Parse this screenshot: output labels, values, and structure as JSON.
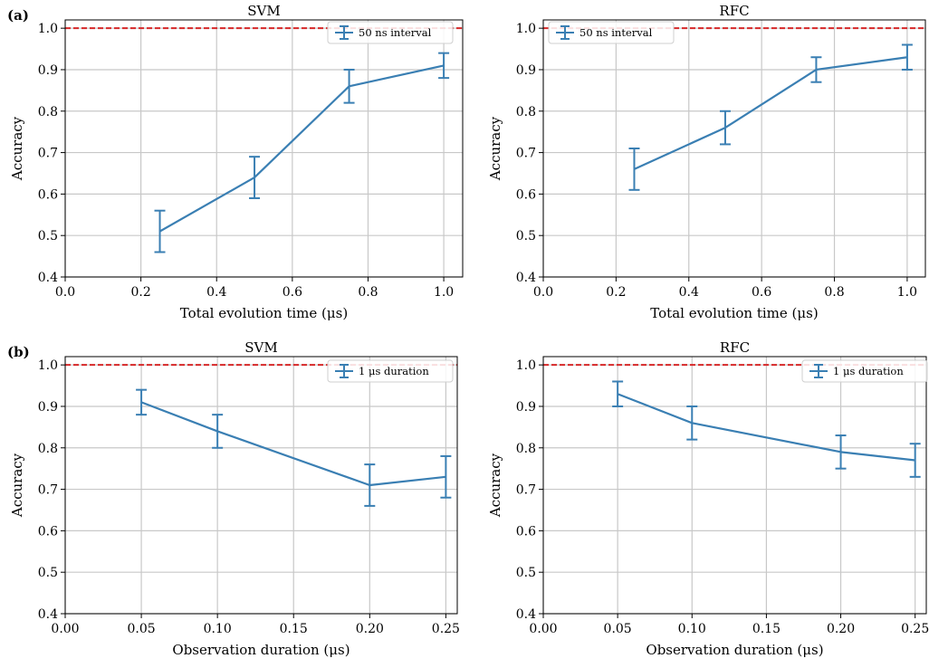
{
  "figure": {
    "panel_labels": [
      "(a)",
      "(b)"
    ]
  },
  "style": {
    "series_color": "#3a7fb3",
    "reference_color": "#d62728",
    "grid_color": "#c8c8c8",
    "frame_color": "#000000"
  },
  "chart_data": [
    {
      "type": "line",
      "panel": "(a)",
      "title": "SVM",
      "xlabel": "Total evolution time (μs)",
      "ylabel": "Accuracy",
      "xlim": [
        0.0,
        1.05
      ],
      "ylim": [
        0.4,
        1.02
      ],
      "xticks": [
        0.0,
        0.2,
        0.4,
        0.6,
        0.8,
        1.0
      ],
      "xtick_labels": [
        "0.0",
        "0.2",
        "0.4",
        "0.6",
        "0.8",
        "1.0"
      ],
      "yticks": [
        0.4,
        0.5,
        0.6,
        0.7,
        0.8,
        0.9,
        1.0
      ],
      "ytick_labels": [
        "0.4",
        "0.5",
        "0.6",
        "0.7",
        "0.8",
        "0.9",
        "1.0"
      ],
      "grid": true,
      "legend_position": "top-right",
      "reference_line": 1.0,
      "series": [
        {
          "name": "50 ns interval",
          "x": [
            0.25,
            0.5,
            0.75,
            1.0
          ],
          "y": [
            0.51,
            0.64,
            0.86,
            0.91
          ],
          "yerr_low": [
            0.46,
            0.59,
            0.82,
            0.88
          ],
          "yerr_high": [
            0.56,
            0.69,
            0.9,
            0.94
          ]
        }
      ]
    },
    {
      "type": "line",
      "panel": "",
      "title": "RFC",
      "xlabel": "Total evolution time (μs)",
      "ylabel": "Accuracy",
      "xlim": [
        0.0,
        1.05
      ],
      "ylim": [
        0.4,
        1.02
      ],
      "xticks": [
        0.0,
        0.2,
        0.4,
        0.6,
        0.8,
        1.0
      ],
      "xtick_labels": [
        "0.0",
        "0.2",
        "0.4",
        "0.6",
        "0.8",
        "1.0"
      ],
      "yticks": [
        0.4,
        0.5,
        0.6,
        0.7,
        0.8,
        0.9,
        1.0
      ],
      "ytick_labels": [
        "0.4",
        "0.5",
        "0.6",
        "0.7",
        "0.8",
        "0.9",
        "1.0"
      ],
      "grid": true,
      "legend_position": "top-left",
      "reference_line": 1.0,
      "series": [
        {
          "name": "50 ns interval",
          "x": [
            0.25,
            0.5,
            0.75,
            1.0
          ],
          "y": [
            0.66,
            0.76,
            0.9,
            0.93
          ],
          "yerr_low": [
            0.61,
            0.72,
            0.87,
            0.9
          ],
          "yerr_high": [
            0.71,
            0.8,
            0.93,
            0.96
          ]
        }
      ]
    },
    {
      "type": "line",
      "panel": "(b)",
      "title": "SVM",
      "xlabel": "Observation duration (μs)",
      "ylabel": "Accuracy",
      "xlim": [
        0.0,
        0.2575
      ],
      "ylim": [
        0.4,
        1.02
      ],
      "xticks": [
        0.0,
        0.05,
        0.1,
        0.15,
        0.2,
        0.25
      ],
      "xtick_labels": [
        "0.00",
        "0.05",
        "0.10",
        "0.15",
        "0.20",
        "0.25"
      ],
      "yticks": [
        0.4,
        0.5,
        0.6,
        0.7,
        0.8,
        0.9,
        1.0
      ],
      "ytick_labels": [
        "0.4",
        "0.5",
        "0.6",
        "0.7",
        "0.8",
        "0.9",
        "1.0"
      ],
      "grid": true,
      "legend_position": "top-right",
      "reference_line": 1.0,
      "series": [
        {
          "name": "1 μs duration",
          "x": [
            0.05,
            0.1,
            0.2,
            0.25
          ],
          "y": [
            0.91,
            0.84,
            0.71,
            0.73
          ],
          "yerr_low": [
            0.88,
            0.8,
            0.66,
            0.68
          ],
          "yerr_high": [
            0.94,
            0.88,
            0.76,
            0.78
          ]
        }
      ]
    },
    {
      "type": "line",
      "panel": "",
      "title": "RFC",
      "xlabel": "Observation duration (μs)",
      "ylabel": "Accuracy",
      "xlim": [
        0.0,
        0.2575
      ],
      "ylim": [
        0.4,
        1.02
      ],
      "xticks": [
        0.0,
        0.05,
        0.1,
        0.15,
        0.2,
        0.25
      ],
      "xtick_labels": [
        "0.00",
        "0.05",
        "0.10",
        "0.15",
        "0.20",
        "0.25"
      ],
      "yticks": [
        0.4,
        0.5,
        0.6,
        0.7,
        0.8,
        0.9,
        1.0
      ],
      "ytick_labels": [
        "0.4",
        "0.5",
        "0.6",
        "0.7",
        "0.8",
        "0.9",
        "1.0"
      ],
      "grid": true,
      "legend_position": "top-right",
      "reference_line": 1.0,
      "series": [
        {
          "name": "1 μs duration",
          "x": [
            0.05,
            0.1,
            0.2,
            0.25
          ],
          "y": [
            0.93,
            0.86,
            0.79,
            0.77
          ],
          "yerr_low": [
            0.9,
            0.82,
            0.75,
            0.73
          ],
          "yerr_high": [
            0.96,
            0.9,
            0.83,
            0.81
          ]
        }
      ]
    }
  ]
}
